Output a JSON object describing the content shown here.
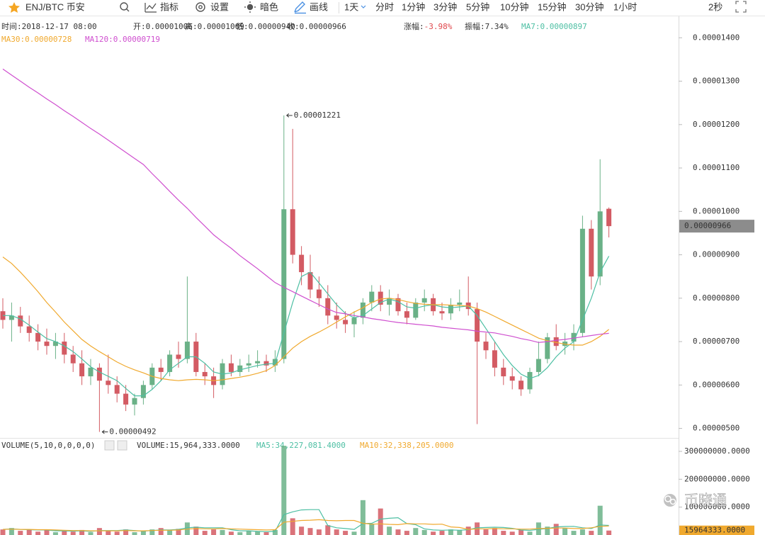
{
  "toolbar": {
    "symbol": "ENJ/BTC 币安",
    "tools": [
      "指标",
      "设置",
      "暗色",
      "画线"
    ],
    "intervals": [
      "1天",
      "分时",
      "1分钟",
      "3分钟",
      "5分钟",
      "10分钟",
      "15分钟",
      "30分钟",
      "1小时"
    ],
    "refresh": "2秒"
  },
  "info": {
    "line1": [
      {
        "label": "时间:",
        "value": "2018-12-17 08:00"
      },
      {
        "label": "开:",
        "value": "0.00001006"
      },
      {
        "label": "高:",
        "value": "0.00001009"
      },
      {
        "label": "低:",
        "value": "0.00000940"
      },
      {
        "label": "收:",
        "value": "0.00000966"
      },
      {
        "label": "涨幅:",
        "value": "-3.98%",
        "value_color": "#e0474c"
      },
      {
        "label": "振幅:",
        "value": "7.34%"
      },
      {
        "label": "MA7:",
        "value": "0.00000897",
        "color": "#4dbfa3"
      }
    ],
    "line2": [
      {
        "label": "MA30:",
        "value": "0.00000728",
        "color": "#f0a92e"
      },
      {
        "label": "MA120:",
        "value": "0.00000719",
        "color": "#cf4fcf"
      }
    ],
    "volume": [
      {
        "label": "VOLUME(5,10,0,0,0,0)",
        "value": ""
      },
      {
        "label": "VOLUME:",
        "value": "15,964,333.0000"
      },
      {
        "label": "MA5:",
        "value": "34,227,081.4000",
        "color": "#4dbfa3"
      },
      {
        "label": "MA10:",
        "value": "32,338,205.0000",
        "color": "#f0a92e"
      }
    ]
  },
  "watermark": "币晓通",
  "chart_data": [
    {
      "type": "candlestick",
      "up_color": "#6ab187",
      "down_color": "#d35b63",
      "grid": false,
      "open": [
        7.7e-06,
        7.5e-06,
        7.6e-06,
        7.35e-06,
        7.2e-06,
        7e-06,
        6.9e-06,
        7e-06,
        6.7e-06,
        6.5e-06,
        6.2e-06,
        6.4e-06,
        6.1e-06,
        6e-06,
        5.8e-06,
        5.55e-06,
        5.7e-06,
        6e-06,
        6.4e-06,
        6.3e-06,
        6.7e-06,
        6.6e-06,
        7e-06,
        6.3e-06,
        6.2e-06,
        6e-06,
        6.5e-06,
        6.3e-06,
        6.45e-06,
        6.5e-06,
        6.55e-06,
        6.45e-06,
        6.6e-06,
        1.005e-05,
        9e-06,
        8.6e-06,
        8.2e-06,
        8e-06,
        7.6e-06,
        7.5e-06,
        7.4e-06,
        7.55e-06,
        7.9e-06,
        8.15e-06,
        7.85e-06,
        8e-06,
        7.7e-06,
        7.55e-06,
        7.9e-06,
        8e-06,
        7.7e-06,
        7.65e-06,
        7.85e-06,
        7.9e-06,
        7.75e-06,
        7e-06,
        6.8e-06,
        6.4e-06,
        6.2e-06,
        6.1e-06,
        5.9e-06,
        6.3e-06,
        6.6e-06,
        7.1e-06,
        6.9e-06,
        7e-06,
        7.2e-06,
        9.6e-06,
        8.5e-06,
        1.006e-05
      ],
      "high": [
        8e-06,
        7.9e-06,
        7.8e-06,
        7.6e-06,
        7.4e-06,
        7.3e-06,
        7.2e-06,
        7.2e-06,
        6.9e-06,
        6.8e-06,
        6.6e-06,
        6.5e-06,
        6.7e-06,
        6.2e-06,
        6e-06,
        5.8e-06,
        6.1e-06,
        6.5e-06,
        6.6e-06,
        6.8e-06,
        7e-06,
        8.5e-06,
        7.2e-06,
        6.5e-06,
        6.4e-06,
        6.6e-06,
        6.7e-06,
        6.6e-06,
        6.7e-06,
        6.8e-06,
        6.7e-06,
        6.8e-06,
        1.221e-05,
        1.19e-05,
        9.2e-06,
        9e-06,
        8.5e-06,
        8.3e-06,
        7.9e-06,
        7.7e-06,
        7.7e-06,
        8e-06,
        8.3e-06,
        8.3e-06,
        8.2e-06,
        8.1e-06,
        7.9e-06,
        8e-06,
        8.2e-06,
        8.1e-06,
        7.9e-06,
        8e-06,
        8.2e-06,
        8.5e-06,
        7.9e-06,
        7.2e-06,
        7e-06,
        6.6e-06,
        6.4e-06,
        6.2e-06,
        6.4e-06,
        7e-06,
        7.2e-06,
        7.4e-06,
        7.2e-06,
        7.4e-06,
        9.9e-06,
        9.8e-06,
        1.12e-05,
        1.009e-05
      ],
      "low": [
        7.3e-06,
        7e-06,
        7.2e-06,
        7e-06,
        6.8e-06,
        6.7e-06,
        6.6e-06,
        6.5e-06,
        6.3e-06,
        6e-06,
        6e-06,
        4.92e-06,
        5.8e-06,
        5.6e-06,
        5.4e-06,
        5.3e-06,
        5.55e-06,
        5.9e-06,
        6.1e-06,
        6.2e-06,
        6.4e-06,
        6.5e-06,
        6.2e-06,
        6e-06,
        5.7e-06,
        5.9e-06,
        6.2e-06,
        6.2e-06,
        6.3e-06,
        6.4e-06,
        6.3e-06,
        6.3e-06,
        6.5e-06,
        8.8e-06,
        8.3e-06,
        8e-06,
        7.8e-06,
        7.4e-06,
        7.3e-06,
        7.2e-06,
        7.1e-06,
        7.4e-06,
        7.7e-06,
        7.7e-06,
        7.6e-06,
        7.6e-06,
        7.4e-06,
        7.5e-06,
        7.7e-06,
        7.6e-06,
        7.5e-06,
        7.5e-06,
        7.7e-06,
        7.6e-06,
        5.1e-06,
        6.6e-06,
        6.2e-06,
        6e-06,
        5.9e-06,
        5.75e-06,
        5.8e-06,
        6.2e-06,
        6.5e-06,
        6.8e-06,
        6.7e-06,
        6.8e-06,
        7.1e-06,
        8.2e-06,
        8.3e-06,
        9.4e-06
      ],
      "close": [
        7.5e-06,
        7.6e-06,
        7.35e-06,
        7.2e-06,
        7e-06,
        6.9e-06,
        7e-06,
        6.7e-06,
        6.5e-06,
        6.2e-06,
        6.4e-06,
        6.1e-06,
        6e-06,
        5.8e-06,
        5.55e-06,
        5.7e-06,
        6e-06,
        6.4e-06,
        6.3e-06,
        6.7e-06,
        6.6e-06,
        7e-06,
        6.3e-06,
        6.2e-06,
        6e-06,
        6.5e-06,
        6.3e-06,
        6.45e-06,
        6.5e-06,
        6.55e-06,
        6.45e-06,
        6.6e-06,
        1.005e-05,
        9e-06,
        8.6e-06,
        8.2e-06,
        8e-06,
        7.6e-06,
        7.5e-06,
        7.4e-06,
        7.55e-06,
        7.9e-06,
        8.15e-06,
        7.85e-06,
        8e-06,
        7.7e-06,
        7.55e-06,
        7.9e-06,
        8e-06,
        7.7e-06,
        7.65e-06,
        7.85e-06,
        7.9e-06,
        7.75e-06,
        7e-06,
        6.8e-06,
        6.4e-06,
        6.2e-06,
        6.1e-06,
        5.9e-06,
        6.3e-06,
        6.6e-06,
        7.1e-06,
        6.9e-06,
        7e-06,
        7.2e-06,
        9.6e-06,
        8.5e-06,
        1e-05,
        9.66e-06
      ],
      "series": [
        {
          "color": "#4dbfa3",
          "values": [
            7.6e-06,
            7.6e-06,
            7.52e-06,
            7.38e-06,
            7.22e-06,
            7.07e-06,
            7e-06,
            6.9e-06,
            6.77e-06,
            6.6e-06,
            6.42e-06,
            6.3e-06,
            6.2e-06,
            6.1e-06,
            5.92e-06,
            5.75e-06,
            5.75e-06,
            5.9e-06,
            6.1e-06,
            6.35e-06,
            6.5e-06,
            6.65e-06,
            6.65e-06,
            6.5e-06,
            6.3e-06,
            6.25e-06,
            6.28e-06,
            6.35e-06,
            6.4e-06,
            6.45e-06,
            6.48e-06,
            6.5e-06,
            7.2e-06,
            7.9e-06,
            8.5e-06,
            8.6e-06,
            8.35e-06,
            8.1e-06,
            7.85e-06,
            7.65e-06,
            7.55e-06,
            7.6e-06,
            7.75e-06,
            7.9e-06,
            7.98e-06,
            7.92e-06,
            7.8e-06,
            7.77e-06,
            7.82e-06,
            7.85e-06,
            7.8e-06,
            7.78e-06,
            7.8e-06,
            7.82e-06,
            7.6e-06,
            7.3e-06,
            7e-06,
            6.7e-06,
            6.45e-06,
            6.25e-06,
            6.15e-06,
            6.22e-06,
            6.4e-06,
            6.65e-06,
            6.85e-06,
            7e-06,
            7.5e-06,
            8e-06,
            8.6e-06,
            8.97e-06
          ]
        },
        {
          "color": "#f0a92e",
          "values": [
            8.95e-06,
            8.8e-06,
            8.6e-06,
            8.38e-06,
            8.15e-06,
            7.9e-06,
            7.68e-06,
            7.45e-06,
            7.25e-06,
            7.05e-06,
            6.9e-06,
            6.77e-06,
            6.65e-06,
            6.53e-06,
            6.43e-06,
            6.35e-06,
            6.28e-06,
            6.2e-06,
            6.15e-06,
            6.12e-06,
            6.1e-06,
            6.12e-06,
            6.13e-06,
            6.12e-06,
            6.1e-06,
            6.12e-06,
            6.15e-06,
            6.18e-06,
            6.22e-06,
            6.27e-06,
            6.33e-06,
            6.45e-06,
            6.65e-06,
            6.85e-06,
            7e-06,
            7.12e-06,
            7.22e-06,
            7.33e-06,
            7.45e-06,
            7.57e-06,
            7.68e-06,
            7.78e-06,
            7.9e-06,
            7.98e-06,
            8e-06,
            7.97e-06,
            7.92e-06,
            7.88e-06,
            7.86e-06,
            7.85e-06,
            7.85e-06,
            7.84e-06,
            7.83e-06,
            7.82e-06,
            7.76e-06,
            7.68e-06,
            7.58e-06,
            7.48e-06,
            7.38e-06,
            7.28e-06,
            7.18e-06,
            7.08e-06,
            7.02e-06,
            6.98e-06,
            6.94e-06,
            6.92e-06,
            6.92e-06,
            7e-06,
            7.12e-06,
            7.28e-06
          ]
        },
        {
          "color": "#cf4fcf",
          "values": [
            1.328e-05,
            1.314e-05,
            1.3e-05,
            1.286e-05,
            1.273e-05,
            1.259e-05,
            1.246e-05,
            1.232e-05,
            1.219e-05,
            1.205e-05,
            1.191e-05,
            1.178e-05,
            1.164e-05,
            1.15e-05,
            1.136e-05,
            1.122e-05,
            1.108e-05,
            1.087e-05,
            1.067e-05,
            1.046e-05,
            1.026e-05,
            1.007e-05,
            9.86e-06,
            9.66e-06,
            9.46e-06,
            9.3e-06,
            9.15e-06,
            8.98e-06,
            8.83e-06,
            8.68e-06,
            8.52e-06,
            8.36e-06,
            8.25e-06,
            8.15e-06,
            8.05e-06,
            7.95e-06,
            7.85e-06,
            7.75e-06,
            7.67e-06,
            7.64e-06,
            7.6e-06,
            7.57e-06,
            7.53e-06,
            7.5e-06,
            7.47e-06,
            7.44e-06,
            7.42e-06,
            7.4e-06,
            7.38e-06,
            7.36e-06,
            7.33e-06,
            7.31e-06,
            7.29e-06,
            7.27e-06,
            7.24e-06,
            7.22e-06,
            7.2e-06,
            7.16e-06,
            7.12e-06,
            7.07e-06,
            7.03e-06,
            6.98e-06,
            7e-06,
            7.03e-06,
            7.05e-06,
            7.08e-06,
            7.11e-06,
            7.14e-06,
            7.17e-06,
            7.19e-06
          ]
        }
      ],
      "ylim": [
        4.83e-06,
        1.438e-05
      ],
      "yticks": [
        {
          "value": 5e-06,
          "label": "0.00000500"
        },
        {
          "value": 6e-06,
          "label": "0.00000600"
        },
        {
          "value": 7e-06,
          "label": "0.00000700"
        },
        {
          "value": 8e-06,
          "label": "0.00000800"
        },
        {
          "value": 9e-06,
          "label": "0.00000900"
        },
        {
          "value": 1e-05,
          "label": "0.00001000"
        },
        {
          "value": 1.1e-05,
          "label": "0.00001100"
        },
        {
          "value": 1.2e-05,
          "label": "0.00001200"
        },
        {
          "value": 1.3e-05,
          "label": "0.00001300"
        },
        {
          "value": 1.4e-05,
          "label": "0.00001400"
        }
      ],
      "last_price": {
        "value": 9.66e-06,
        "label": "0.00000966"
      },
      "annotations": [
        {
          "value": 1.221e-05,
          "label": "0.00001221"
        },
        {
          "value": 4.92e-06,
          "label": "0.00000492"
        }
      ]
    },
    {
      "type": "bar",
      "up_color": "#6ab187",
      "down_color": "#d35b63",
      "values": [
        20000000,
        25000000,
        15000000,
        18000000,
        12000000,
        20000000,
        10000000,
        15000000,
        12000000,
        18000000,
        10000000,
        25000000,
        15000000,
        12000000,
        20000000,
        10000000,
        15000000,
        20000000,
        25000000,
        18000000,
        22000000,
        45000000,
        30000000,
        15000000,
        20000000,
        18000000,
        12000000,
        10000000,
        15000000,
        12000000,
        10000000,
        18000000,
        320000000,
        60000000,
        30000000,
        25000000,
        20000000,
        35000000,
        20000000,
        15000000,
        12000000,
        125000000,
        40000000,
        95000000,
        30000000,
        20000000,
        15000000,
        25000000,
        18000000,
        12000000,
        15000000,
        20000000,
        18000000,
        30000000,
        45000000,
        20000000,
        25000000,
        15000000,
        12000000,
        18000000,
        12000000,
        45000000,
        30000000,
        40000000,
        25000000,
        15000000,
        20000000,
        15000000,
        105000000,
        15964333
      ],
      "series": [
        {
          "color": "#4dbfa3",
          "values": [
            20000000,
            22000000,
            20000000,
            19000000,
            18000000,
            18000000,
            15000000,
            15000000,
            14000000,
            15000000,
            13000000,
            16000000,
            16000000,
            16000000,
            18000000,
            16000000,
            14000000,
            16000000,
            18000000,
            18000000,
            20000000,
            26000000,
            28000000,
            26000000,
            26000000,
            26000000,
            19000000,
            15000000,
            15000000,
            13000000,
            12000000,
            13000000,
            73000000,
            83000000,
            90000000,
            91000000,
            91000000,
            34000000,
            26000000,
            23000000,
            20000000,
            41000000,
            42000000,
            57000000,
            60000000,
            62000000,
            41000000,
            37000000,
            22000000,
            18000000,
            17000000,
            18000000,
            17000000,
            19000000,
            26000000,
            27000000,
            28000000,
            27000000,
            24000000,
            18000000,
            16400000,
            20400000,
            23400000,
            29000000,
            30400000,
            31000000,
            26000000,
            23000000,
            36000000,
            34227081.4
          ]
        },
        {
          "color": "#f0a92e",
          "values": [
            20000000,
            21000000,
            20000000,
            20000000,
            19000000,
            19000000,
            18000000,
            17000000,
            16000000,
            16000000,
            15000000,
            15000000,
            15000000,
            15000000,
            16000000,
            15000000,
            15000000,
            16000000,
            17000000,
            17000000,
            18000000,
            21000000,
            23000000,
            22000000,
            22000000,
            23000000,
            22000000,
            21000000,
            20000000,
            19000000,
            18000000,
            19000000,
            46000000,
            49000000,
            52000000,
            53000000,
            55000000,
            52000000,
            51000000,
            52000000,
            52000000,
            42000000,
            39000000,
            40000000,
            38000000,
            37000000,
            41000000,
            40000000,
            40000000,
            38000000,
            39000000,
            29000000,
            27000000,
            20000000,
            22000000,
            22000000,
            23000000,
            22000000,
            22000000,
            21000000,
            21000000,
            23000000,
            24000000,
            25000000,
            25000000,
            23000000,
            23000000,
            26000000,
            31000000,
            32338205
          ]
        }
      ],
      "ylim": [
        0,
        338000000
      ],
      "yticks": [
        {
          "value": 100000000,
          "label": "100000000.0000"
        },
        {
          "value": 200000000,
          "label": "200000000.0000"
        },
        {
          "value": 300000000,
          "label": "300000000.0000"
        }
      ],
      "last_value": {
        "value": 15964333,
        "label": "15964333.0000"
      }
    }
  ]
}
